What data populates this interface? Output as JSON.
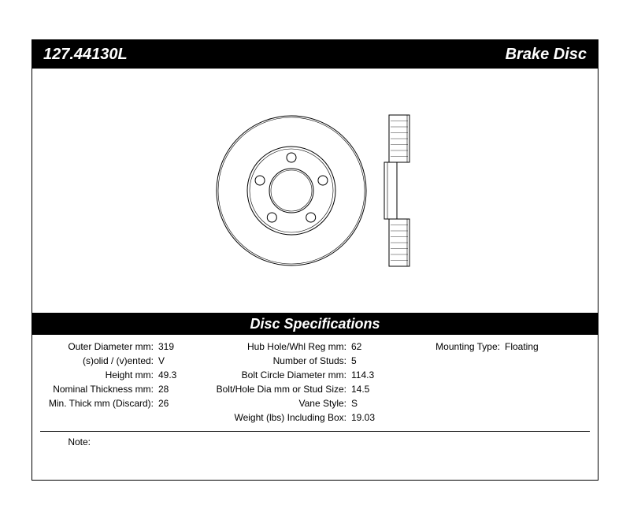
{
  "header": {
    "part_number": "127.44130L",
    "product_type": "Brake Disc"
  },
  "spec_section_title": "Disc Specifications",
  "specs_col1": [
    {
      "label": "Outer Diameter mm:",
      "value": "319"
    },
    {
      "label": "(s)olid / (v)ented:",
      "value": "V"
    },
    {
      "label": "Height mm:",
      "value": "49.3"
    },
    {
      "label": "Nominal Thickness mm:",
      "value": "28"
    },
    {
      "label": "Min. Thick mm (Discard):",
      "value": "26"
    }
  ],
  "specs_col2": [
    {
      "label": "Hub Hole/Whl Reg mm:",
      "value": "62"
    },
    {
      "label": "Number of Studs:",
      "value": "5"
    },
    {
      "label": "Bolt Circle Diameter mm:",
      "value": "114.3"
    },
    {
      "label": "Bolt/Hole Dia mm or Stud Size:",
      "value": "14.5"
    },
    {
      "label": "Vane Style:",
      "value": "S"
    },
    {
      "label": "Weight (lbs) Including Box:",
      "value": "19.03"
    }
  ],
  "specs_col3": [
    {
      "label": "Mounting Type:",
      "value": "Floating"
    }
  ],
  "note": {
    "label": "Note:",
    "value": ""
  },
  "diagram": {
    "stroke": "#000000",
    "fill": "#ffffff",
    "disc_outer_r": 95,
    "disc_step_r": 56,
    "hub_hole_r": 28,
    "bolt_circle_r": 42,
    "bolt_hole_r": 6,
    "num_bolts": 5,
    "profile": {
      "width": 40,
      "height": 192
    }
  }
}
